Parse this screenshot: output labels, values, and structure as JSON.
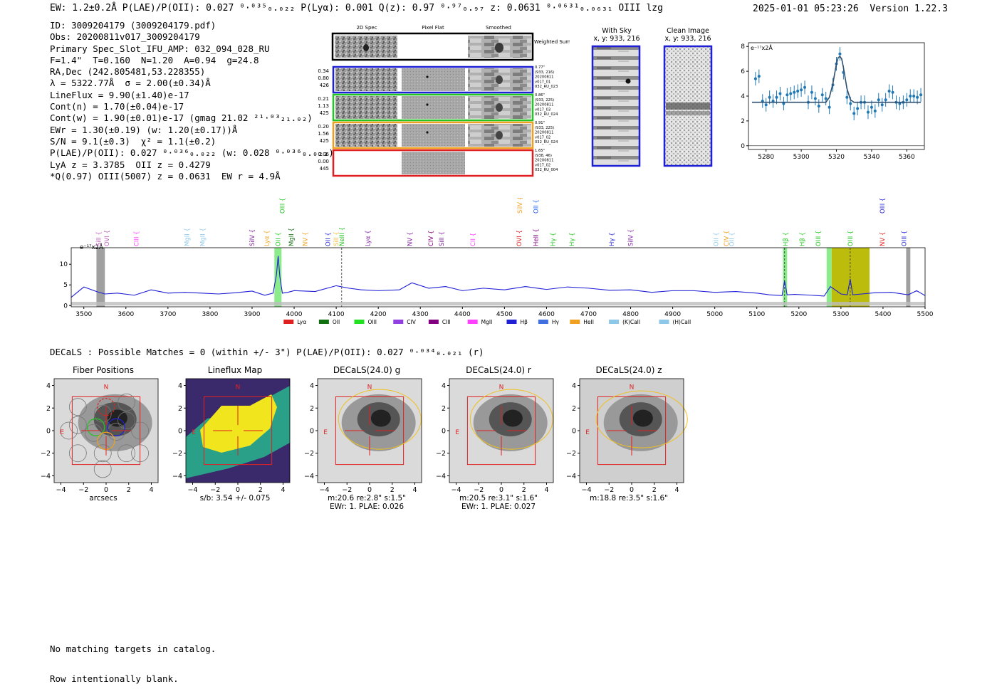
{
  "header": {
    "summary_line": "EW: 1.2±0.2Å  P(LAE)/P(OII): 0.027 ⁰·⁰³⁵₀.₀₂₂  P(Lyα): 0.001  Q(z): 0.97 ⁰·⁹⁷₀.₉₇  z: 0.0631 ⁰·⁰⁶³¹₀.₀₆₃₁ OIII  lzg",
    "timestamp": "2025-01-01 05:23:26",
    "version": "Version 1.22.3"
  },
  "info": {
    "lines": [
      "ID: 3009204179 (3009204179.pdf)",
      "Obs: 20200811v017_3009204179",
      "Primary Spec_Slot_IFU_AMP: 032_094_028_RU",
      "F=1.4\"  T=0.160  N=1.20  A=0.94  g=24.8",
      "RA,Dec (242.805481,53.228355)",
      "λ = 5322.77Å  σ = 2.00(±0.34)Å",
      "LineFlux = 9.90(±1.40)e-17",
      "Cont(n) = 1.70(±0.04)e-17",
      "Cont(w) = 1.90(±0.01)e-17 (gmag 21.02 ²¹·⁰³₂₁.₀₂)",
      "EWr = 1.30(±0.19) (w: 1.20(±0.17))Å",
      "S/N = 9.1(±0.3)  χ² = 1.1(±0.2)",
      "P(LAE)/P(OII): 0.027 ⁰·⁰³⁶₀.₀₂₂ (w: 0.028 ⁰·⁰³⁶₀.₀₂₂)",
      "LyA z = 3.3785  OII z = 0.4279",
      "*Q(0.97) OIII(5007) z = 0.0631  EW r = 4.9Å"
    ]
  },
  "cutouts": {
    "col_titles": [
      "2D Spec",
      "Pixel Flat",
      "Smoothed"
    ],
    "weighted_label": "Weighted Sum",
    "rows": [
      {
        "left": [
          "0.34",
          "0.80",
          "426"
        ],
        "right": [
          "0.77\"",
          "(933, 216)",
          "20200811",
          "v017_01",
          "032_RU_023"
        ],
        "color": "#1f1fd6"
      },
      {
        "left": [
          "0.21",
          "1.13",
          "425"
        ],
        "right": [
          "0.86\"",
          "(933, 225)",
          "20200811",
          "v017_03",
          "032_RU_024"
        ],
        "color": "#22c522"
      },
      {
        "left": [
          "0.20",
          "1.56",
          "425"
        ],
        "right": [
          "0.91\"",
          "(933, 225)",
          "20200811",
          "v017_02",
          "032_RU_024"
        ],
        "color": "#f0a020"
      },
      {
        "left": [
          "0.06",
          "0.00",
          "445"
        ],
        "right": [
          "1.65\"",
          "(938, 46)",
          "20200811",
          "v017_02",
          "032_RU_004"
        ],
        "color": "#e02020"
      }
    ]
  },
  "sky": {
    "with_sky_title": "With Sky",
    "with_sky_coords": "x, y: 933, 216",
    "clean_title": "Clean Image",
    "clean_coords": "x, y: 933, 216"
  },
  "zoom_chart": {
    "unit_label": "e⁻¹⁷x2Å"
  },
  "spectrum": {
    "unit_label": "e⁻¹⁷x2Å",
    "line_labels": [
      {
        "t": "SiII",
        "w": 3535,
        "c": "#c060c0",
        "r": 1
      },
      {
        "t": "OVI",
        "w": 3555,
        "c": "#c060c0",
        "r": 1
      },
      {
        "t": "CIII",
        "w": 3625,
        "c": "#ff40ff",
        "r": 1
      },
      {
        "t": "MgII",
        "w": 3745,
        "c": "#8ec8e8",
        "r": 1
      },
      {
        "t": "MgII",
        "w": 3782,
        "c": "#8ec8e8",
        "r": 1
      },
      {
        "t": "SiIV",
        "w": 3900,
        "c": "#8020a0",
        "r": 1
      },
      {
        "t": "Lyα",
        "w": 3935,
        "c": "#f0a020",
        "r": 1
      },
      {
        "t": "OII",
        "w": 3962,
        "c": "#22c522",
        "r": 1
      },
      {
        "t": "OIII",
        "w": 3972,
        "c": "#22c522",
        "r": 0
      },
      {
        "t": "MgII",
        "w": 3993,
        "c": "#107010",
        "r": 1
      },
      {
        "t": "NV",
        "w": 4026,
        "c": "#f0a020",
        "r": 1
      },
      {
        "t": "OII",
        "w": 4080,
        "c": "#1f1fd6",
        "r": 1
      },
      {
        "t": "SiII",
        "w": 4100,
        "c": "#f0c040",
        "r": 1
      },
      {
        "t": "NeIII",
        "w": 4113,
        "c": "#22c522",
        "r": 1
      },
      {
        "t": "Lyα",
        "w": 4175,
        "c": "#8020a0",
        "r": 1
      },
      {
        "t": "NV",
        "w": 4275,
        "c": "#8020a0",
        "r": 1
      },
      {
        "t": "CIV",
        "w": 4325,
        "c": "#800080",
        "r": 1
      },
      {
        "t": "SiII",
        "w": 4350,
        "c": "#8020a0",
        "r": 1
      },
      {
        "t": "CII",
        "w": 4425,
        "c": "#ff40ff",
        "r": 1
      },
      {
        "t": "OVI",
        "w": 4535,
        "c": "#e02020",
        "r": 1
      },
      {
        "t": "SiIV",
        "w": 4537,
        "c": "#f0a020",
        "r": 0
      },
      {
        "t": "HeII",
        "w": 4575,
        "c": "#800080",
        "r": 1
      },
      {
        "t": "OII",
        "w": 4575,
        "c": "#1f60ff",
        "r": 0
      },
      {
        "t": "Hγ",
        "w": 4615,
        "c": "#22c522",
        "r": 1
      },
      {
        "t": "Hγ",
        "w": 4660,
        "c": "#22c522",
        "r": 1
      },
      {
        "t": "Hγ",
        "w": 4755,
        "c": "#1f1fd6",
        "r": 1
      },
      {
        "t": "SiIV",
        "w": 4800,
        "c": "#8020a0",
        "r": 1
      },
      {
        "t": "OII",
        "w": 5003,
        "c": "#8ec8e8",
        "r": 1
      },
      {
        "t": "CIV",
        "w": 5028,
        "c": "#f0a020",
        "r": 1
      },
      {
        "t": "OII",
        "w": 5040,
        "c": "#8ec8e8",
        "r": 1
      },
      {
        "t": "Hβ",
        "w": 5168,
        "c": "#22c522",
        "r": 1
      },
      {
        "t": "Hβ",
        "w": 5208,
        "c": "#22c522",
        "r": 1
      },
      {
        "t": "OIII",
        "w": 5246,
        "c": "#22c522",
        "r": 1
      },
      {
        "t": "OIII",
        "w": 5322,
        "c": "#22c522",
        "r": 1
      },
      {
        "t": "NV",
        "w": 5398,
        "c": "#e02020",
        "r": 1
      },
      {
        "t": "OIII",
        "w": 5398,
        "c": "#1f1fd6",
        "r": 0
      },
      {
        "t": "OIII",
        "w": 5450,
        "c": "#1f1fd6",
        "r": 1
      }
    ],
    "legend": [
      {
        "t": "Lyα",
        "c": "#e02020"
      },
      {
        "t": "OII",
        "c": "#107010"
      },
      {
        "t": "OIII",
        "c": "#22e022"
      },
      {
        "t": "CIV",
        "c": "#9040e0"
      },
      {
        "t": "CIII",
        "c": "#800080"
      },
      {
        "t": "MgII",
        "c": "#ff40ff"
      },
      {
        "t": "Hβ",
        "c": "#1f1fd6"
      },
      {
        "t": "Hγ",
        "c": "#4070e0"
      },
      {
        "t": "HeII",
        "c": "#f0a020"
      },
      {
        "t": "(K)CaII",
        "c": "#8ec8e8"
      },
      {
        "t": "(H)CaII",
        "c": "#8ec8e8"
      }
    ]
  },
  "decals": {
    "line": "DECaLS : Possible Matches = 0 (within +/- 3\")  P(LAE)/P(OII): 0.027 ⁰·⁰³⁴₀.₀₂₁ (r)",
    "panels": [
      {
        "title": "Fiber Positions",
        "xlabel": "arcsecs",
        "sub": "",
        "sub2": ""
      },
      {
        "title": "Lineflux Map",
        "xlabel": "",
        "sub": "s/b: 3.54 +/- 0.075",
        "sub2": ""
      },
      {
        "title": "DECaLS(24.0) g",
        "xlabel": "",
        "sub": "m:20.6  re:2.8\"  s:1.5\"",
        "sub2": "EWr: 1. PLAE: 0.026"
      },
      {
        "title": "DECaLS(24.0) r",
        "xlabel": "",
        "sub": "m:20.5  re:3.1\"  s:1.6\"",
        "sub2": "EWr: 1. PLAE: 0.027"
      },
      {
        "title": "DECaLS(24.0) z",
        "xlabel": "",
        "sub": "m:18.8  re:3.5\"  s:1.6\"",
        "sub2": ""
      }
    ],
    "north_label": "N",
    "east_label": "E"
  },
  "footer": {
    "line1": "No matching targets in catalog.",
    "line2": "Row intentionally blank."
  },
  "chart_data": [
    {
      "type": "scatter",
      "title": "",
      "xlabel": "",
      "ylabel": "e⁻¹⁷x2Å",
      "xlim": [
        5270,
        5370
      ],
      "ylim": [
        -0.3,
        8.3
      ],
      "xticks": [
        5280,
        5300,
        5320,
        5340,
        5360
      ],
      "yticks": [
        0,
        2,
        4,
        6,
        8
      ],
      "series": [
        {
          "x": [
            5274,
            5276,
            5278,
            5280,
            5282,
            5284,
            5286,
            5288,
            5290,
            5292,
            5294,
            5296,
            5298,
            5300,
            5302,
            5304,
            5306,
            5308,
            5310,
            5312,
            5314,
            5316,
            5318,
            5320,
            5322,
            5324,
            5326,
            5328,
            5330,
            5332,
            5334,
            5336,
            5338,
            5340,
            5342,
            5344,
            5346,
            5348,
            5350,
            5352,
            5354,
            5356,
            5358,
            5360,
            5362,
            5364,
            5366,
            5368
          ],
          "y": [
            5.4,
            5.6,
            3.6,
            3.3,
            3.9,
            3.6,
            3.9,
            4.2,
            3.4,
            4.1,
            4.2,
            4.3,
            4.4,
            4.5,
            4.7,
            3.5,
            4.3,
            3.8,
            3.2,
            4.1,
            3.8,
            3.1,
            4.9,
            6.6,
            7.4,
            5.9,
            3.9,
            3.4,
            2.6,
            3.0,
            3.5,
            3.5,
            2.7,
            3.1,
            2.8,
            3.7,
            3.3,
            3.7,
            4.4,
            4.3,
            3.5,
            3.4,
            3.5,
            3.7,
            4.0,
            4.0,
            3.9,
            4.1
          ],
          "err": 0.55
        },
        {
          "name": "",
          "type": "line",
          "x": [
            5272,
            5314,
            5316,
            5318,
            5320,
            5321,
            5322,
            5323,
            5324,
            5326,
            5328,
            5330,
            5368
          ],
          "y": [
            3.5,
            3.5,
            3.9,
            5.0,
            6.6,
            7.1,
            7.2,
            7.0,
            6.3,
            4.6,
            3.7,
            3.5,
            3.5
          ]
        }
      ]
    },
    {
      "type": "line",
      "title": "",
      "xlabel": "",
      "ylabel": "e⁻¹⁷x2Å",
      "xlim": [
        3470,
        5500
      ],
      "ylim": [
        -0.3,
        14.0
      ],
      "xticks": [
        3500,
        3600,
        3700,
        3800,
        3900,
        4000,
        4100,
        4200,
        4300,
        4400,
        4500,
        4600,
        4700,
        4800,
        4900,
        5000,
        5100,
        5200,
        5300,
        5400,
        5500
      ],
      "yticks": [
        0,
        5,
        10
      ],
      "series": [
        {
          "x": [
            3470,
            3500,
            3530,
            3550,
            3580,
            3620,
            3660,
            3700,
            3740,
            3780,
            3820,
            3860,
            3900,
            3930,
            3950,
            3958,
            3962,
            3966,
            3972,
            3985,
            4000,
            4050,
            4100,
            4130,
            4160,
            4200,
            4250,
            4280,
            4320,
            4360,
            4400,
            4450,
            4500,
            4550,
            4600,
            4650,
            4700,
            4750,
            4800,
            4850,
            4900,
            4950,
            5000,
            5050,
            5100,
            5130,
            5160,
            5166,
            5172,
            5190,
            5230,
            5260,
            5275,
            5300,
            5315,
            5322,
            5328,
            5350,
            5380,
            5420,
            5460,
            5480,
            5500
          ],
          "y": [
            2.0,
            4.5,
            3.4,
            2.8,
            3.0,
            2.5,
            3.8,
            3.0,
            3.2,
            3.0,
            2.8,
            3.1,
            3.5,
            2.5,
            3.0,
            7.5,
            12.0,
            7.0,
            3.0,
            3.2,
            3.6,
            3.4,
            4.8,
            4.2,
            3.8,
            3.6,
            3.8,
            5.5,
            4.2,
            4.6,
            3.6,
            4.2,
            3.8,
            4.6,
            3.9,
            4.5,
            4.2,
            3.7,
            3.8,
            3.2,
            3.6,
            3.6,
            3.2,
            3.4,
            3.0,
            2.6,
            2.4,
            6.0,
            2.6,
            2.7,
            2.5,
            2.3,
            4.6,
            2.8,
            2.6,
            6.4,
            2.6,
            2.8,
            3.1,
            3.2,
            2.6,
            3.6,
            2.4
          ]
        }
      ]
    }
  ]
}
